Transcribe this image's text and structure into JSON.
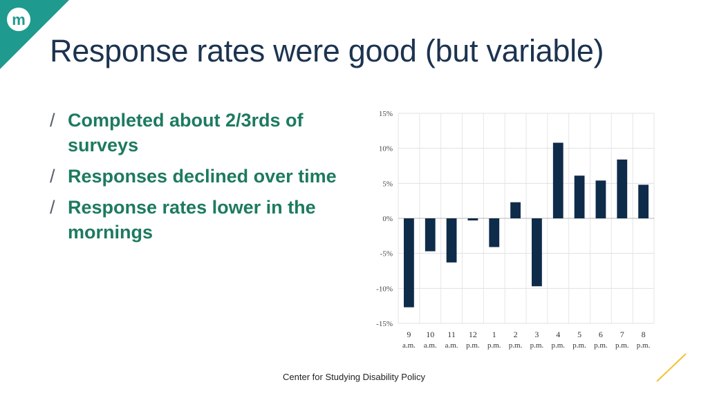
{
  "slide": {
    "title": "Response rates were good (but variable)",
    "footer": "Center for Studying Disability Policy",
    "logo_letter": "m",
    "bullets": [
      {
        "marker": "/",
        "text": "Completed about 2/3rds of surveys"
      },
      {
        "marker": "/",
        "text": "Responses declined over time"
      },
      {
        "marker": "/",
        "text": "Response rates lower in the mornings"
      }
    ]
  },
  "colors": {
    "brand_teal": "#1f9a8f",
    "title": "#1c3350",
    "bullet": "#1d7a60",
    "bar": "#0f2b4a",
    "accent_line": "#f2c230"
  },
  "chart_data": {
    "type": "bar",
    "title": "",
    "xlabel": "",
    "ylabel": "",
    "ylim": [
      -15,
      15
    ],
    "yticks": [
      {
        "value": 15,
        "label": "15%"
      },
      {
        "value": 10,
        "label": "10%"
      },
      {
        "value": 5,
        "label": "5%"
      },
      {
        "value": 0,
        "label": "0%"
      },
      {
        "value": -5,
        "label": "-5%"
      },
      {
        "value": -10,
        "label": "-10%"
      },
      {
        "value": -15,
        "label": "-15%"
      }
    ],
    "categories": [
      {
        "hour": "9",
        "period": "a.m."
      },
      {
        "hour": "10",
        "period": "a.m."
      },
      {
        "hour": "11",
        "period": "a.m."
      },
      {
        "hour": "12",
        "period": "p.m."
      },
      {
        "hour": "1",
        "period": "p.m."
      },
      {
        "hour": "2",
        "period": "p.m."
      },
      {
        "hour": "3",
        "period": "p.m."
      },
      {
        "hour": "4",
        "period": "p.m."
      },
      {
        "hour": "5",
        "period": "p.m."
      },
      {
        "hour": "6",
        "period": "p.m."
      },
      {
        "hour": "7",
        "period": "p.m."
      },
      {
        "hour": "8",
        "period": "p.m."
      }
    ],
    "values": [
      -12.7,
      -4.7,
      -6.3,
      -0.3,
      -4.1,
      2.3,
      -9.7,
      10.8,
      6.1,
      5.4,
      8.4,
      4.8
    ],
    "grid": true,
    "legend": "none"
  }
}
